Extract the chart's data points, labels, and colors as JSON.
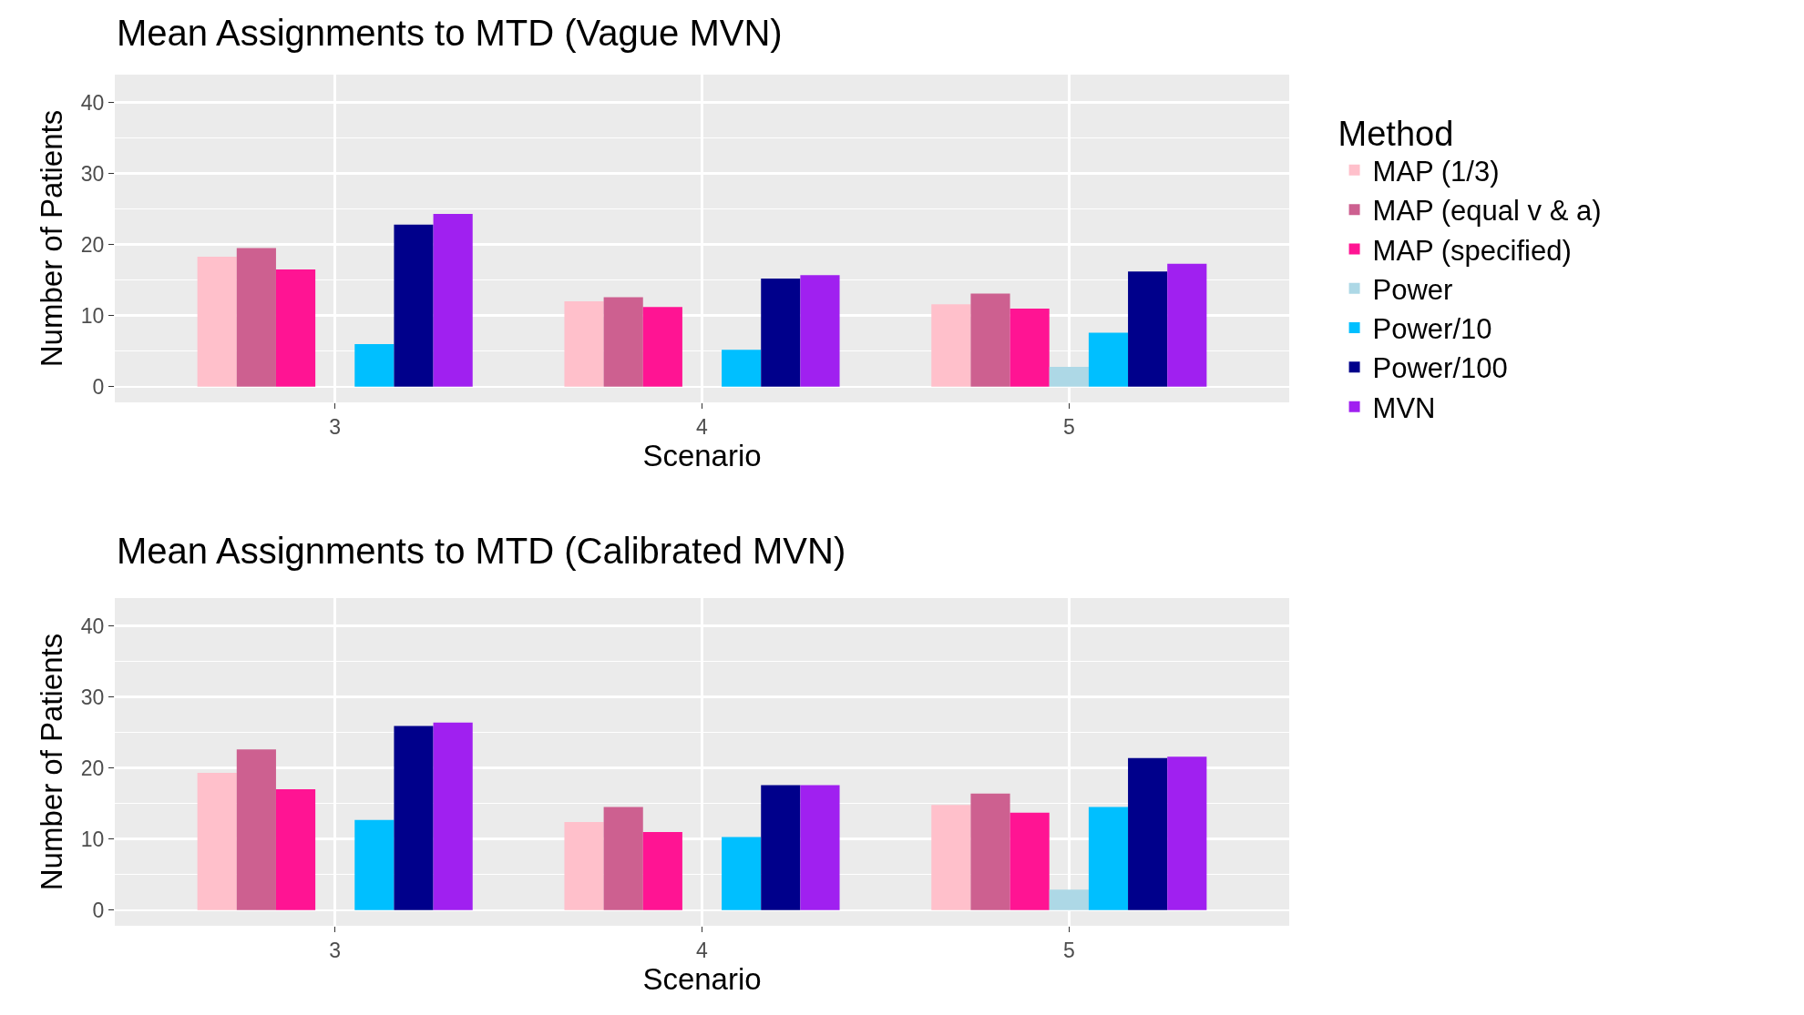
{
  "chart_data": [
    {
      "type": "bar",
      "title": "Mean Assignments to MTD (Vague MVN)",
      "xlabel": "Scenario",
      "ylabel": "Number of Patients",
      "legend_title": "Method",
      "categories": [
        "3",
        "4",
        "5"
      ],
      "ylim": [
        -2.2,
        43.9
      ],
      "yticks": [
        0,
        10,
        20,
        30,
        40
      ],
      "grid": true,
      "legend": "right",
      "series": [
        {
          "name": "MAP (1/3)",
          "color": "#ffc0cb",
          "values": [
            18.3,
            12.0,
            11.6
          ]
        },
        {
          "name": "MAP (equal v & a)",
          "color": "#cd6090",
          "values": [
            19.5,
            12.6,
            13.1
          ]
        },
        {
          "name": "MAP (specified)",
          "color": "#ff1493",
          "values": [
            16.5,
            11.2,
            11.0
          ]
        },
        {
          "name": "Power",
          "color": "#add8e6",
          "values": [
            0,
            0,
            2.8
          ]
        },
        {
          "name": "Power/10",
          "color": "#00bfff",
          "values": [
            6.0,
            5.2,
            7.6
          ]
        },
        {
          "name": "Power/100",
          "color": "#00008b",
          "values": [
            22.8,
            15.2,
            16.2
          ]
        },
        {
          "name": "MVN",
          "color": "#a020f0",
          "values": [
            24.3,
            15.7,
            17.3
          ]
        }
      ]
    },
    {
      "type": "bar",
      "title": "Mean Assignments to MTD (Calibrated MVN)",
      "xlabel": "Scenario",
      "ylabel": "Number of Patients",
      "categories": [
        "3",
        "4",
        "5"
      ],
      "ylim": [
        -2.2,
        43.9
      ],
      "yticks": [
        0,
        10,
        20,
        30,
        40
      ],
      "grid": true,
      "series": [
        {
          "color": "#ffc0cb",
          "values": [
            19.3,
            12.4,
            14.8
          ]
        },
        {
          "color": "#cd6090",
          "values": [
            22.6,
            14.5,
            16.4
          ]
        },
        {
          "color": "#ff1493",
          "values": [
            17.0,
            11.0,
            13.7
          ]
        },
        {
          "color": "#add8e6",
          "values": [
            0,
            0,
            2.9
          ]
        },
        {
          "color": "#00bfff",
          "values": [
            12.7,
            10.3,
            14.5
          ]
        },
        {
          "color": "#00008b",
          "values": [
            25.9,
            17.6,
            21.4
          ]
        },
        {
          "color": "#a020f0",
          "values": [
            26.4,
            17.6,
            21.6
          ]
        }
      ]
    }
  ]
}
